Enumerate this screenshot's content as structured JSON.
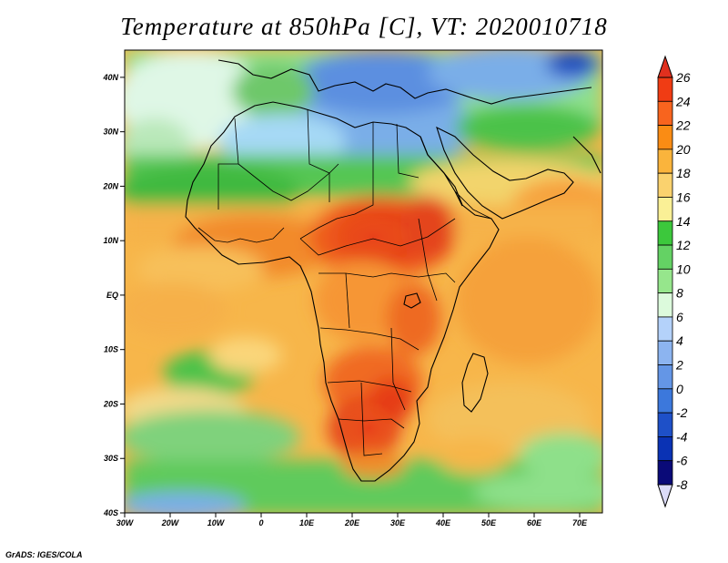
{
  "title": "Temperature at 850hPa [C], VT: 2020010718",
  "credit": "GrADS: IGES/COLA",
  "map": {
    "variable": "Temperature at 850hPa",
    "units": "C",
    "valid_time": "2020010718",
    "lon_range": [
      -30,
      75
    ],
    "lat_range": [
      -40,
      45
    ],
    "lat_ticks": [
      {
        "value": 40,
        "label": "40N"
      },
      {
        "value": 30,
        "label": "30N"
      },
      {
        "value": 20,
        "label": "20N"
      },
      {
        "value": 10,
        "label": "10N"
      },
      {
        "value": 0,
        "label": "EQ"
      },
      {
        "value": -10,
        "label": "10S"
      },
      {
        "value": -20,
        "label": "20S"
      },
      {
        "value": -30,
        "label": "30S"
      },
      {
        "value": -40,
        "label": "40S"
      }
    ],
    "lon_ticks": [
      {
        "value": -30,
        "label": "30W"
      },
      {
        "value": -20,
        "label": "20W"
      },
      {
        "value": -10,
        "label": "10W"
      },
      {
        "value": 0,
        "label": "0"
      },
      {
        "value": 10,
        "label": "10E"
      },
      {
        "value": 20,
        "label": "20E"
      },
      {
        "value": 30,
        "label": "30E"
      },
      {
        "value": 40,
        "label": "40E"
      },
      {
        "value": 50,
        "label": "50E"
      },
      {
        "value": 60,
        "label": "60E"
      },
      {
        "value": 70,
        "label": "70E"
      }
    ]
  },
  "colorbar": {
    "levels": [
      26,
      24,
      22,
      20,
      18,
      16,
      14,
      12,
      10,
      8,
      6,
      4,
      2,
      0,
      -2,
      -4,
      -6,
      -8
    ],
    "labels": [
      "26",
      "24",
      "22",
      "20",
      "18",
      "16",
      "14",
      "12",
      "10",
      "8",
      "6",
      "4",
      "2",
      "0",
      "-2",
      "-4",
      "-6",
      "-8"
    ],
    "top_color": "#e0301e",
    "bottom_color": "#dcdcf8",
    "colors": [
      "#f03c14",
      "#f8641e",
      "#fa8c14",
      "#fab43c",
      "#fad26e",
      "#faf096",
      "#3cc83c",
      "#64d264",
      "#96e68c",
      "#dcfadc",
      "#b4d2fa",
      "#8cb4f0",
      "#6496e6",
      "#3c78dc",
      "#1e50c8",
      "#0a32b4",
      "#0a0a78"
    ]
  }
}
